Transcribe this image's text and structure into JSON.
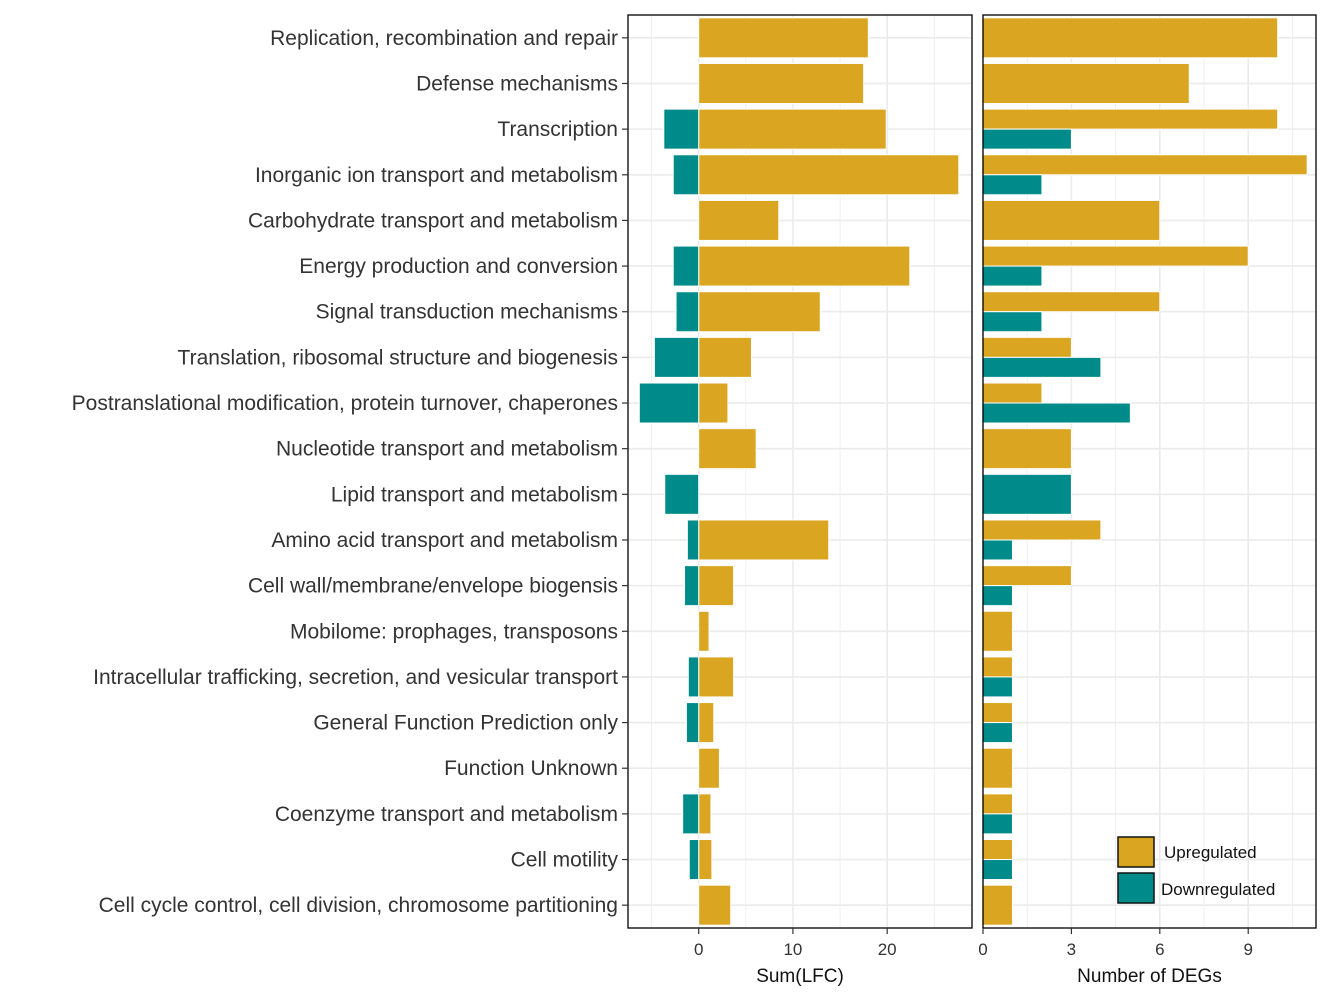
{
  "colors": {
    "upregulated": "#DAA520",
    "downregulated": "#008B8B",
    "grid": "#EBEBEB",
    "panel_border": "#000000"
  },
  "chart_data": [
    {
      "type": "bar",
      "orientation": "horizontal",
      "title": "",
      "xlabel": "Sum(LFC)",
      "ylabel": "",
      "xlim": [
        -7.5,
        29
      ],
      "xticks": [
        0,
        10,
        20
      ],
      "grid": true,
      "categories": [
        "Replication, recombination and repair",
        "Defense mechanisms",
        "Transcription",
        "Inorganic ion transport and metabolism",
        "Carbohydrate transport and metabolism",
        "Energy production and conversion",
        "Signal transduction mechanisms",
        "Translation, ribosomal structure and biogenesis",
        "Postranslational modification, protein turnover, chaperones",
        "Nucleotide transport and metabolism",
        "Lipid transport and metabolism",
        "Amino acid transport and metabolism",
        "Cell wall/membrane/envelope biogensis",
        "Mobilome: prophages, transposons",
        "Intracellular trafficking, secretion, and vesicular transport",
        "General Function Prediction only",
        "Function Unknown",
        "Coenzyme transport and metabolism",
        "Cell motility",
        "Cell cycle control, cell division, chromosome partitioning"
      ],
      "series": [
        {
          "name": "Upregulated",
          "values": [
            18.0,
            17.5,
            19.9,
            27.6,
            8.5,
            22.4,
            12.9,
            5.6,
            3.1,
            6.1,
            0,
            13.8,
            3.7,
            1.1,
            3.7,
            1.6,
            2.2,
            1.3,
            1.4,
            3.4
          ]
        },
        {
          "name": "Downregulated",
          "values": [
            0,
            0,
            -3.7,
            -2.7,
            0,
            -2.7,
            -2.4,
            -4.7,
            -6.3,
            0,
            -3.6,
            -1.2,
            -1.5,
            0,
            -1.1,
            -1.3,
            0,
            -1.7,
            -1.0,
            0
          ]
        }
      ]
    },
    {
      "type": "bar",
      "orientation": "horizontal",
      "title": "",
      "xlabel": "Number of DEGs",
      "ylabel": "",
      "xlim": [
        0,
        11.3
      ],
      "xticks": [
        0,
        3,
        6,
        9
      ],
      "grid": true,
      "position": "dodge",
      "series": [
        {
          "name": "Upregulated",
          "values": [
            10,
            7,
            10,
            11,
            6,
            9,
            6,
            3,
            2,
            3,
            0,
            4,
            3,
            1,
            1,
            1,
            1,
            1,
            1,
            1
          ]
        },
        {
          "name": "Downregulated",
          "values": [
            0,
            0,
            3,
            2,
            0,
            2,
            2,
            4,
            5,
            0,
            3,
            1,
            1,
            0,
            1,
            1,
            0,
            1,
            1,
            0
          ]
        }
      ]
    }
  ],
  "legend": {
    "placement": "bottom-right",
    "items": [
      {
        "label": "Upregulated",
        "color_key": "upregulated"
      },
      {
        "label": "Downregulated",
        "color_key": "downregulated"
      }
    ]
  }
}
